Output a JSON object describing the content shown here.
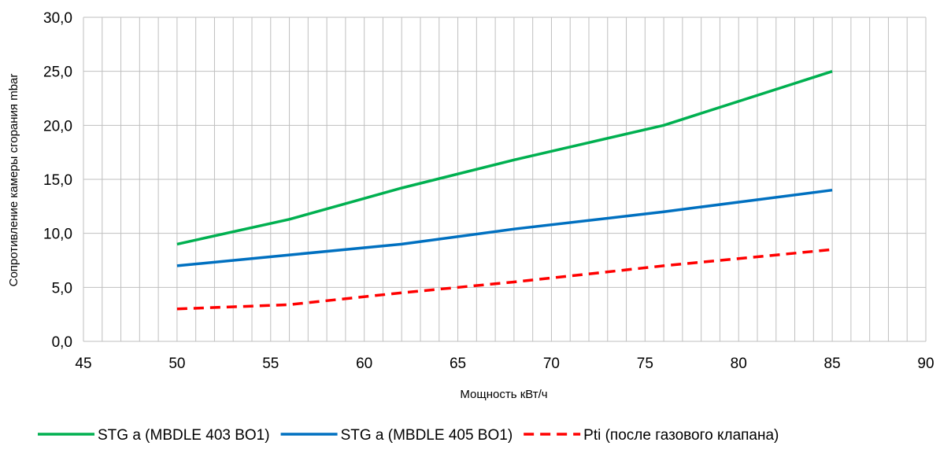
{
  "chart_data": {
    "type": "line",
    "xlabel": "Мощность кВт/ч",
    "ylabel": "Сопротивление камеры сгорания mbar",
    "xlim": [
      45,
      90
    ],
    "ylim": [
      0,
      30
    ],
    "x_ticks": [
      45,
      50,
      55,
      60,
      65,
      70,
      75,
      80,
      85,
      90
    ],
    "y_ticks": [
      0,
      5,
      10,
      15,
      20,
      25,
      30
    ],
    "x_tick_labels": [
      "45",
      "50",
      "55",
      "60",
      "65",
      "70",
      "75",
      "80",
      "85",
      "90"
    ],
    "y_tick_labels": [
      "0,0",
      "5,0",
      "10,0",
      "15,0",
      "20,0",
      "25,0",
      "30,0"
    ],
    "x_minor_step": 1,
    "y_minor_step": 5,
    "grid": true,
    "legend_position": "bottom",
    "series": [
      {
        "name": "STG a (MBDLE 403 BO1)",
        "color": "#00b050",
        "dash": "solid",
        "x": [
          50,
          56,
          62,
          68,
          72,
          76,
          85
        ],
        "y": [
          9.0,
          11.3,
          14.2,
          16.8,
          18.4,
          20.0,
          25.0
        ]
      },
      {
        "name": "STG a (MBDLE 405 BO1)",
        "color": "#0070c0",
        "dash": "solid",
        "x": [
          50,
          56,
          62,
          68,
          76,
          85
        ],
        "y": [
          7.0,
          8.0,
          9.0,
          10.4,
          12.0,
          14.0
        ]
      },
      {
        "name": "Pti (после газового клапана)",
        "color": "#ff0000",
        "dash": "dashed",
        "x": [
          50,
          56,
          62,
          68,
          76,
          85
        ],
        "y": [
          3.0,
          3.4,
          4.5,
          5.5,
          7.0,
          8.5
        ]
      }
    ]
  }
}
